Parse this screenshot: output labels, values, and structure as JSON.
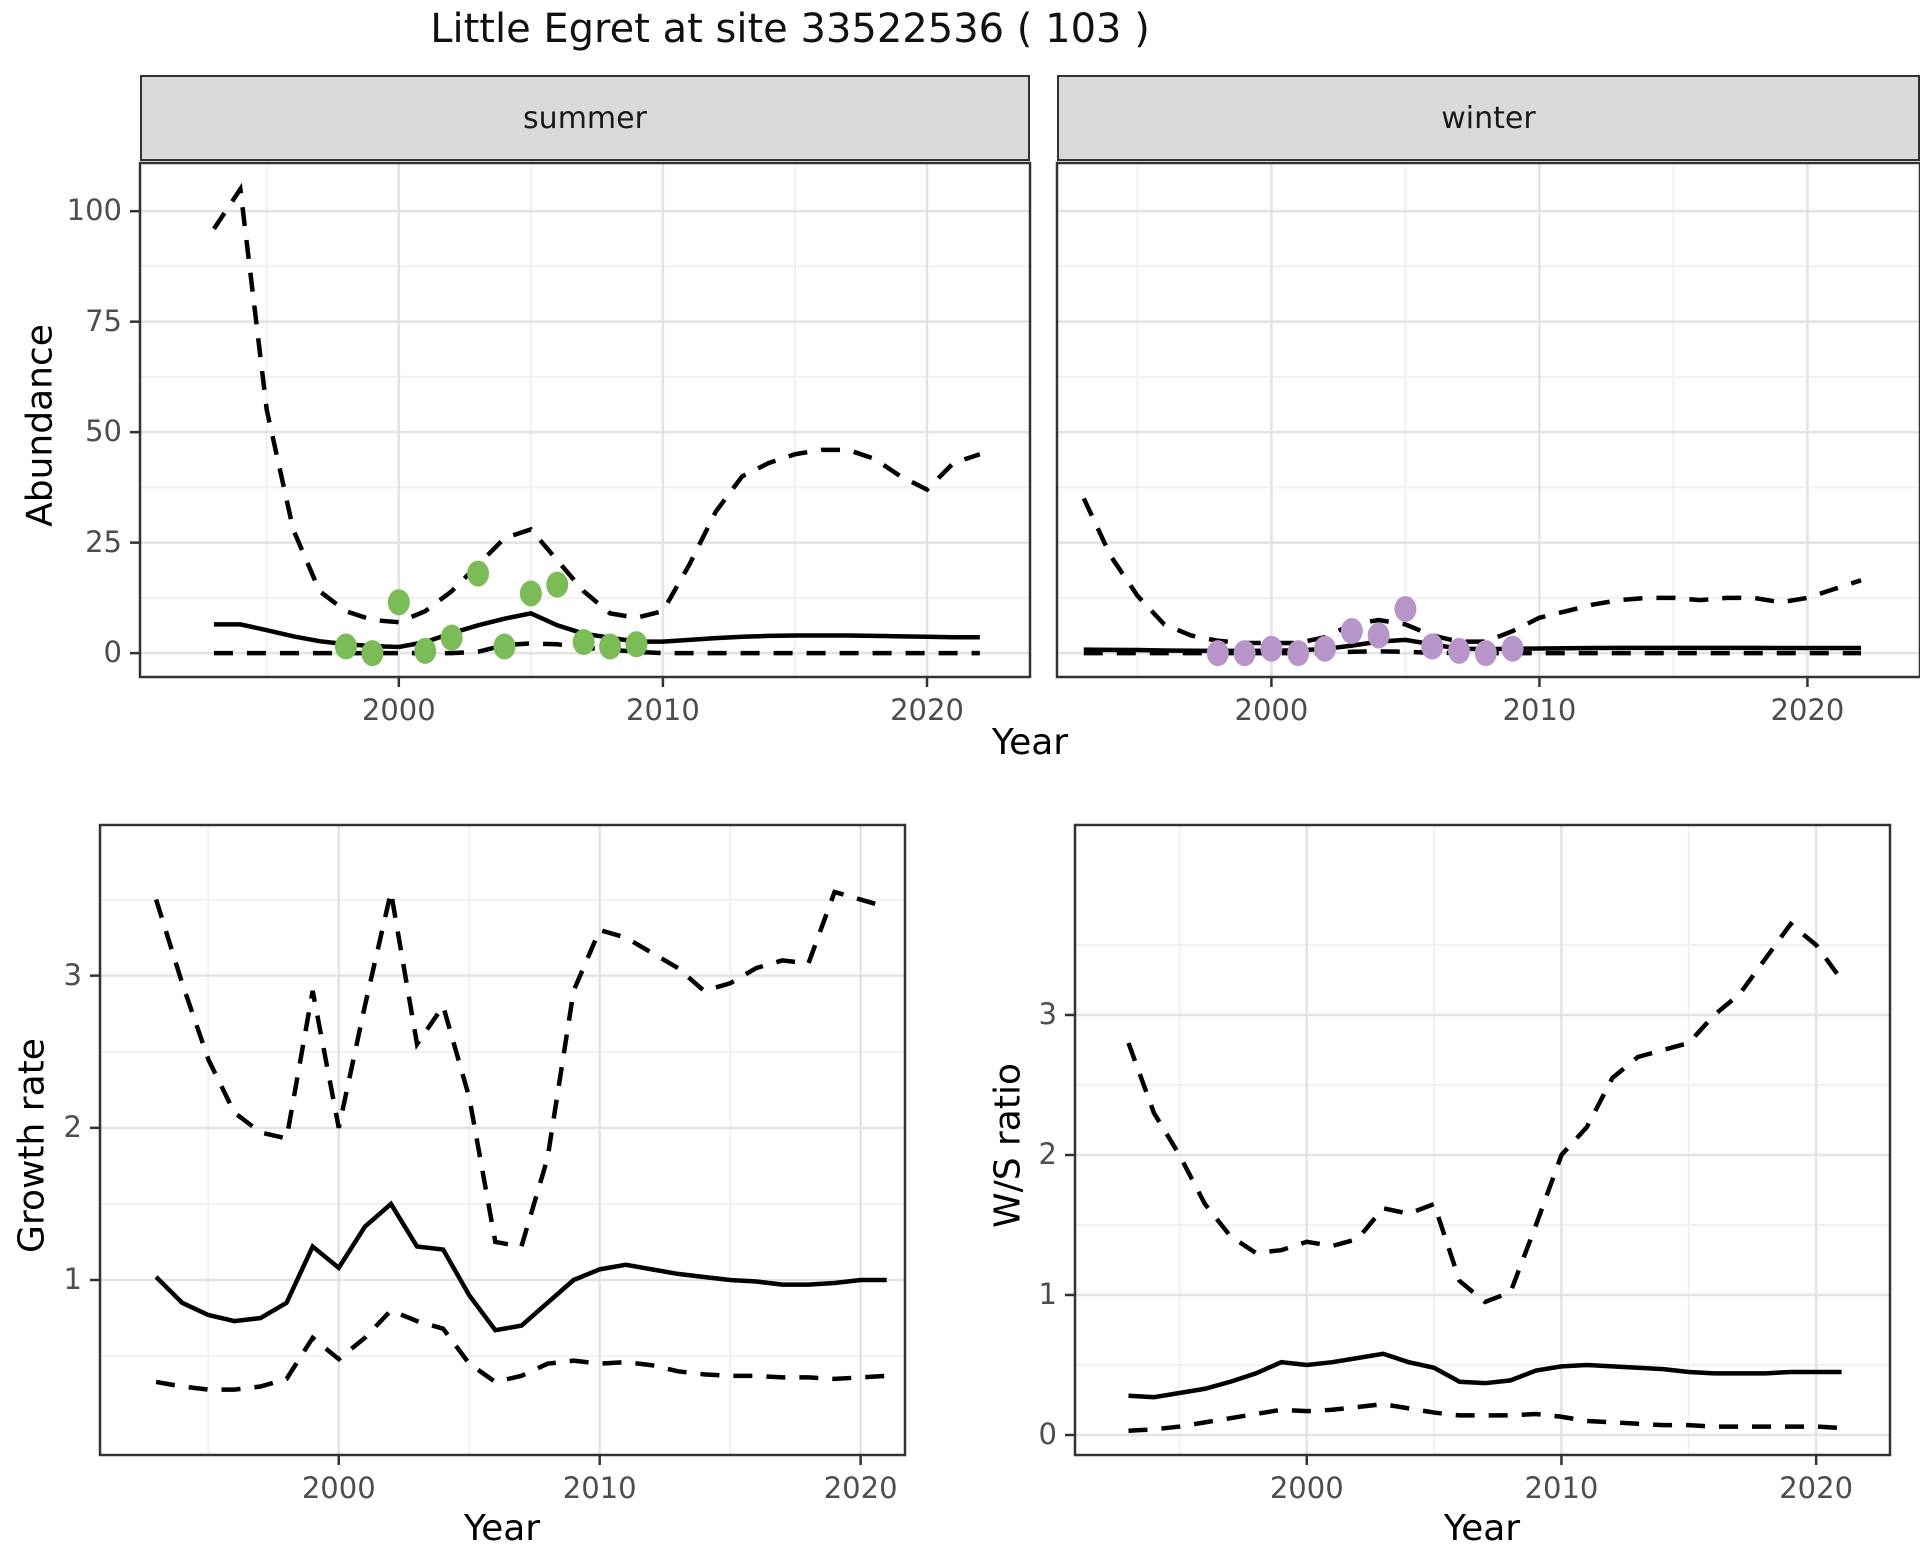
{
  "title": "Little Egret at site 33522536 ( 103 )",
  "theme": {
    "strip_bg": "#d9d9d9",
    "panel_border": "#333333",
    "grid_major": "#e3e3e3",
    "grid_minor": "#f1f1f1",
    "line_color": "#000000",
    "tick_text": "#4d4d4d",
    "summer_point_color": "#7bbc58",
    "winter_point_color": "#b795c8"
  },
  "chart_data": [
    {
      "id": "abundance-summer",
      "type": "line",
      "facet_label": "summer",
      "xlabel": "Year",
      "ylabel": "Abundance",
      "x_ticks": [
        2000,
        2010,
        2020
      ],
      "y_ticks": [
        0,
        25,
        50,
        75,
        100
      ],
      "xlim": [
        1990.2,
        2023.9
      ],
      "ylim": [
        -5.4,
        110.9
      ],
      "grid": true,
      "legend": "none",
      "x": [
        1993,
        1994,
        1995,
        1996,
        1997,
        1998,
        1999,
        2000,
        2001,
        2002,
        2003,
        2004,
        2005,
        2006,
        2007,
        2008,
        2009,
        2010,
        2011,
        2012,
        2013,
        2014,
        2015,
        2016,
        2017,
        2018,
        2019,
        2020,
        2021,
        2022
      ],
      "series": [
        {
          "name": "fitted",
          "style": "solid",
          "values": [
            6.5,
            6.5,
            5.2,
            3.8,
            2.7,
            2.0,
            1.6,
            1.4,
            2.5,
            4.5,
            6.3,
            7.8,
            9.0,
            6.3,
            4.4,
            3.5,
            2.6,
            2.6,
            3.0,
            3.4,
            3.7,
            3.9,
            4.0,
            4.0,
            4.0,
            3.9,
            3.8,
            3.7,
            3.6,
            3.6
          ]
        },
        {
          "name": "upper_ci",
          "style": "dashed",
          "values": [
            96,
            105,
            55,
            28,
            14,
            9.5,
            7.5,
            7,
            9.5,
            14,
            20,
            26,
            28,
            21,
            14,
            9,
            8,
            9.5,
            20,
            32,
            40,
            43,
            45,
            46,
            46,
            44,
            40,
            37,
            43,
            45
          ]
        },
        {
          "name": "lower_ci",
          "style": "dashed",
          "values": [
            0,
            0,
            0,
            0,
            0,
            0,
            0,
            0,
            0,
            0,
            0.3,
            1.8,
            2.2,
            2.0,
            1.2,
            0.8,
            0.3,
            0,
            0,
            0,
            0,
            0,
            0,
            0,
            0,
            0,
            0,
            0,
            0,
            0
          ]
        }
      ],
      "points": {
        "name": "observed-summer",
        "color": "#7bbc58",
        "x": [
          1998,
          1999,
          2000,
          2001,
          2002,
          2003,
          2004,
          2005,
          2006,
          2007,
          2008,
          2009
        ],
        "y": [
          1.5,
          0,
          11.5,
          0.5,
          3.5,
          18,
          1.5,
          13.5,
          15.5,
          2.5,
          1.5,
          2
        ]
      }
    },
    {
      "id": "abundance-winter",
      "type": "line",
      "facet_label": "winter",
      "xlabel": "Year",
      "ylabel": "Abundance",
      "x_ticks": [
        2000,
        2010,
        2020
      ],
      "y_ticks": [
        0,
        25,
        50,
        75,
        100
      ],
      "xlim": [
        1992.0,
        2024.2
      ],
      "ylim": [
        -5.4,
        110.9
      ],
      "grid": true,
      "legend": "none",
      "x": [
        1993,
        1994,
        1995,
        1996,
        1997,
        1998,
        1999,
        2000,
        2001,
        2002,
        2003,
        2004,
        2005,
        2006,
        2007,
        2008,
        2009,
        2010,
        2011,
        2012,
        2013,
        2014,
        2015,
        2016,
        2017,
        2018,
        2019,
        2020,
        2021,
        2022
      ],
      "series": [
        {
          "name": "fitted",
          "style": "solid",
          "values": [
            0.8,
            0.75,
            0.7,
            0.6,
            0.55,
            0.5,
            0.5,
            0.55,
            0.65,
            0.95,
            1.7,
            2.6,
            3.0,
            2.0,
            1.0,
            0.9,
            1.0,
            1.05,
            1.1,
            1.15,
            1.2,
            1.2,
            1.2,
            1.2,
            1.2,
            1.2,
            1.15,
            1.15,
            1.15,
            1.15
          ]
        },
        {
          "name": "upper_ci",
          "style": "dashed",
          "values": [
            35,
            22,
            13,
            6.5,
            4,
            2.8,
            2.3,
            2.3,
            2.3,
            3.6,
            6.5,
            7.5,
            6.5,
            4,
            2.6,
            2.6,
            5,
            8,
            9.5,
            11,
            12,
            12.5,
            12.5,
            12,
            12.5,
            12.5,
            11.5,
            12.5,
            14.5,
            16.5
          ]
        },
        {
          "name": "lower_ci",
          "style": "dashed",
          "values": [
            0,
            0,
            0,
            0,
            0,
            0,
            0,
            0,
            0,
            0,
            0.3,
            0.4,
            0.3,
            0.1,
            0,
            0,
            0,
            0,
            0,
            0,
            0,
            0,
            0,
            0,
            0,
            0,
            0,
            0,
            0,
            0
          ]
        }
      ],
      "points": {
        "name": "observed-winter",
        "color": "#b795c8",
        "x": [
          1998,
          1999,
          2000,
          2001,
          2002,
          2003,
          2004,
          2005,
          2006,
          2007,
          2008,
          2009
        ],
        "y": [
          0,
          0,
          1,
          0,
          1,
          5,
          4,
          10,
          1.5,
          0.5,
          0,
          1
        ]
      }
    },
    {
      "id": "growth-rate",
      "type": "line",
      "facet_label": "",
      "xlabel": "Year",
      "ylabel": "Growth rate",
      "x_ticks": [
        2000,
        2010,
        2020
      ],
      "y_ticks": [
        1,
        2,
        3
      ],
      "xlim": [
        1990.85,
        2021.7
      ],
      "ylim": [
        -0.15,
        3.99
      ],
      "grid": true,
      "legend": "none",
      "x": [
        1993,
        1994,
        1995,
        1996,
        1997,
        1998,
        1999,
        2000,
        2001,
        2002,
        2003,
        2004,
        2005,
        2006,
        2007,
        2008,
        2009,
        2010,
        2011,
        2012,
        2013,
        2014,
        2015,
        2016,
        2017,
        2018,
        2019,
        2020,
        2021
      ],
      "series": [
        {
          "name": "fitted",
          "style": "solid",
          "values": [
            1.02,
            0.85,
            0.77,
            0.73,
            0.75,
            0.85,
            1.22,
            1.08,
            1.35,
            1.5,
            1.22,
            1.2,
            0.9,
            0.67,
            0.7,
            0.85,
            1.0,
            1.07,
            1.1,
            1.07,
            1.04,
            1.02,
            1.0,
            0.99,
            0.97,
            0.97,
            0.98,
            1.0,
            1.0
          ]
        },
        {
          "name": "upper_ci",
          "style": "dashed",
          "values": [
            3.5,
            2.95,
            2.45,
            2.1,
            1.97,
            1.93,
            2.9,
            2.0,
            2.8,
            3.55,
            2.55,
            2.8,
            2.2,
            1.25,
            1.22,
            1.8,
            2.9,
            3.3,
            3.25,
            3.15,
            3.05,
            2.9,
            2.95,
            3.05,
            3.1,
            3.08,
            3.55,
            3.5,
            3.45
          ]
        },
        {
          "name": "lower_ci",
          "style": "dashed",
          "values": [
            0.33,
            0.3,
            0.28,
            0.28,
            0.3,
            0.35,
            0.62,
            0.48,
            0.62,
            0.8,
            0.73,
            0.68,
            0.45,
            0.33,
            0.37,
            0.45,
            0.47,
            0.45,
            0.46,
            0.44,
            0.4,
            0.38,
            0.37,
            0.37,
            0.36,
            0.36,
            0.35,
            0.36,
            0.37
          ]
        }
      ]
    },
    {
      "id": "ws-ratio",
      "type": "line",
      "facet_label": "",
      "xlabel": "Year",
      "ylabel": "W/S ratio",
      "x_ticks": [
        2000,
        2010,
        2020
      ],
      "y_ticks": [
        0,
        1,
        2,
        3
      ],
      "xlim": [
        1990.9,
        2022.9
      ],
      "ylim": [
        -0.143,
        4.357
      ],
      "grid": true,
      "legend": "none",
      "x": [
        1993,
        1994,
        1995,
        1996,
        1997,
        1998,
        1999,
        2000,
        2001,
        2002,
        2003,
        2004,
        2005,
        2006,
        2007,
        2008,
        2009,
        2010,
        2011,
        2012,
        2013,
        2014,
        2015,
        2016,
        2017,
        2018,
        2019,
        2020,
        2021
      ],
      "series": [
        {
          "name": "fitted",
          "style": "solid",
          "values": [
            0.28,
            0.27,
            0.3,
            0.33,
            0.38,
            0.44,
            0.52,
            0.5,
            0.52,
            0.55,
            0.58,
            0.52,
            0.48,
            0.38,
            0.37,
            0.39,
            0.46,
            0.49,
            0.5,
            0.49,
            0.48,
            0.47,
            0.45,
            0.44,
            0.44,
            0.44,
            0.45,
            0.45,
            0.45
          ]
        },
        {
          "name": "upper_ci",
          "style": "dashed",
          "values": [
            2.8,
            2.3,
            2.0,
            1.65,
            1.42,
            1.3,
            1.32,
            1.38,
            1.35,
            1.4,
            1.62,
            1.58,
            1.65,
            1.1,
            0.95,
            1.02,
            1.5,
            2.0,
            2.2,
            2.55,
            2.7,
            2.75,
            2.8,
            3.0,
            3.15,
            3.4,
            3.65,
            3.5,
            3.25
          ]
        },
        {
          "name": "lower_ci",
          "style": "dashed",
          "values": [
            0.03,
            0.04,
            0.06,
            0.09,
            0.12,
            0.15,
            0.18,
            0.17,
            0.18,
            0.2,
            0.22,
            0.19,
            0.16,
            0.14,
            0.14,
            0.14,
            0.15,
            0.13,
            0.1,
            0.09,
            0.08,
            0.07,
            0.07,
            0.06,
            0.06,
            0.06,
            0.06,
            0.06,
            0.05
          ]
        }
      ]
    }
  ]
}
